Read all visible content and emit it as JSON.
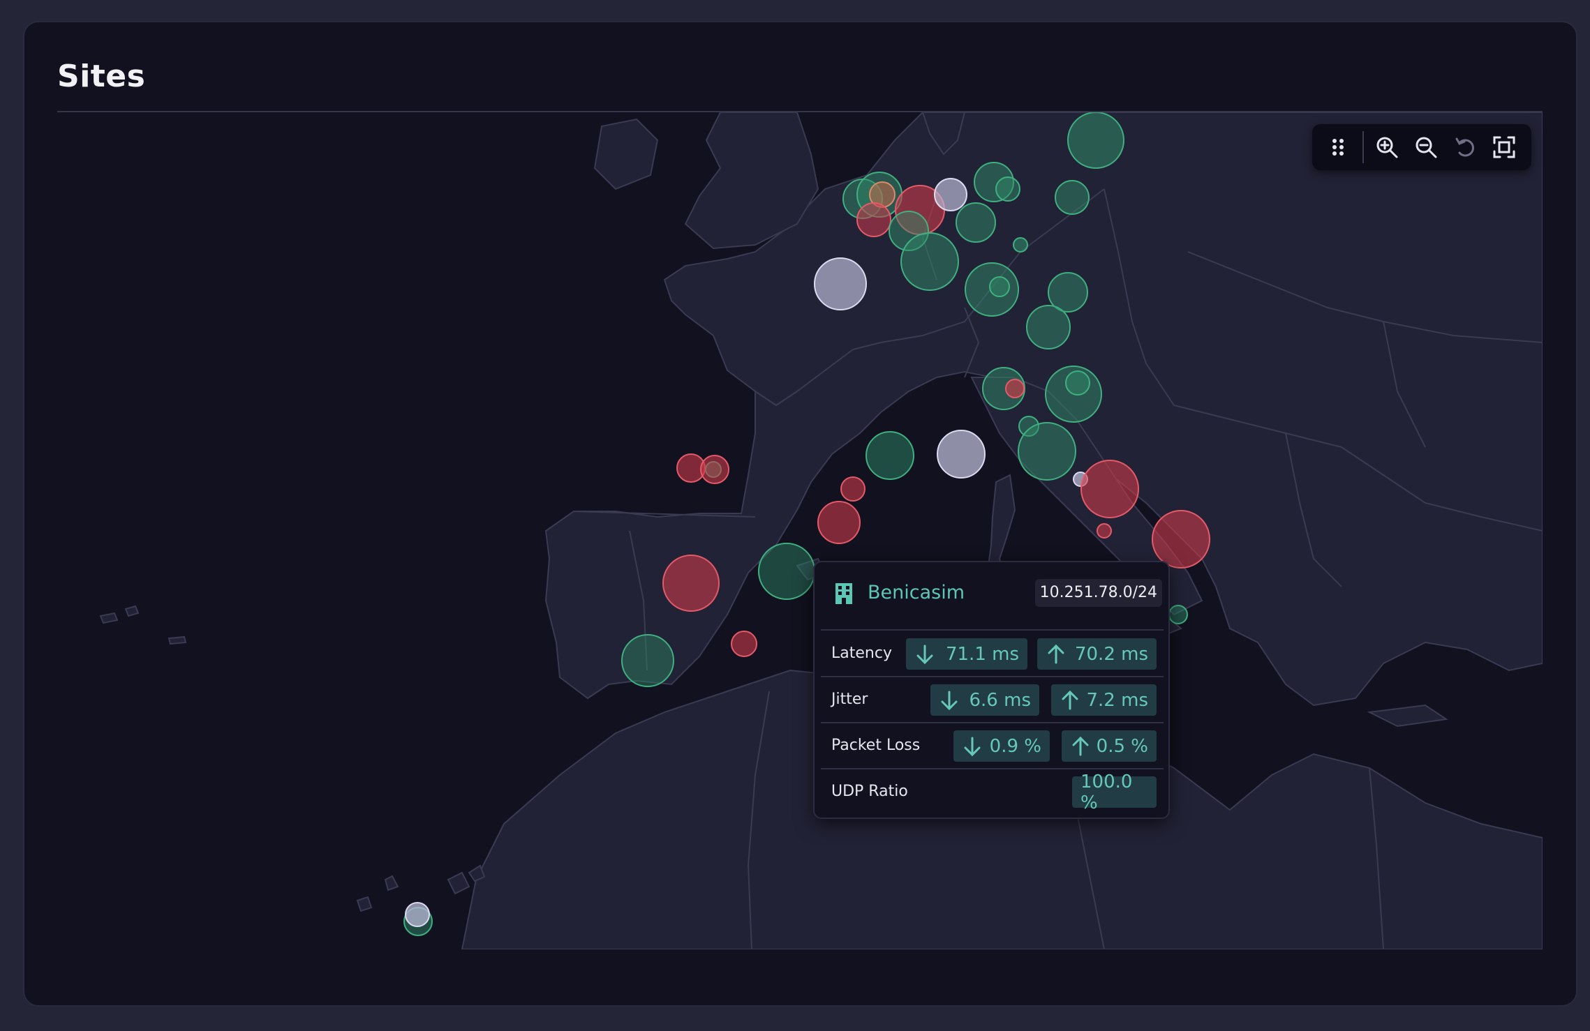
{
  "page": {
    "title": "Sites"
  },
  "toolbar": {
    "buttons": [
      {
        "name": "drag-handle-icon",
        "interactable": true
      },
      {
        "name": "zoom-in-icon",
        "interactable": true
      },
      {
        "name": "zoom-out-icon",
        "interactable": true
      },
      {
        "name": "reset-view-icon",
        "interactable": true
      },
      {
        "name": "fit-screen-icon",
        "interactable": true
      }
    ]
  },
  "map": {
    "colors": {
      "ocean": "#11111f",
      "land": "#222236",
      "border": "#3a3a52",
      "good": "#2f8a67",
      "bad": "#cc3b4a",
      "neutral": "#b9b8d6"
    }
  },
  "tooltip": {
    "site_name": "Benicasim",
    "subnet": "10.251.78.0/24",
    "icon": "building-icon",
    "rows": [
      {
        "label": "Latency",
        "down": "71.1 ms",
        "up": "70.2 ms"
      },
      {
        "label": "Jitter",
        "down": "6.6 ms",
        "up": "7.2 ms"
      },
      {
        "label": "Packet Loss",
        "down": "0.9 %",
        "up": "0.5 %"
      },
      {
        "label": "UDP Ratio",
        "value": "100.0 %"
      }
    ]
  }
}
